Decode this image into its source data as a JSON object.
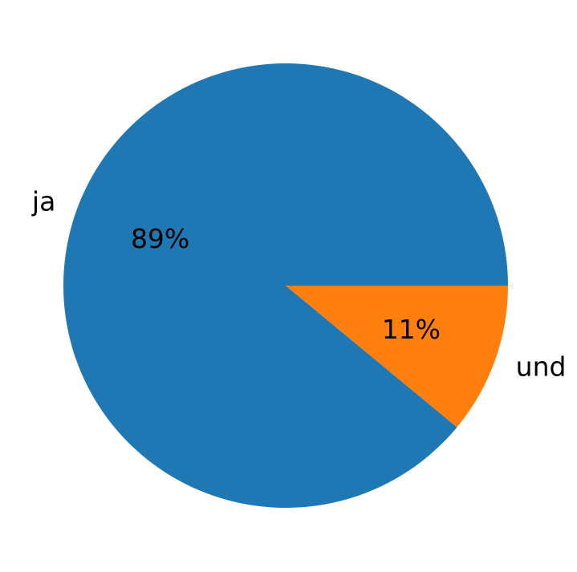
{
  "chart_data": {
    "type": "pie",
    "categories": [
      "ja",
      "und"
    ],
    "values": [
      89,
      11
    ],
    "value_labels": [
      "89%",
      "11%"
    ],
    "colors": [
      "#1f77b4",
      "#ff7f0e"
    ]
  }
}
